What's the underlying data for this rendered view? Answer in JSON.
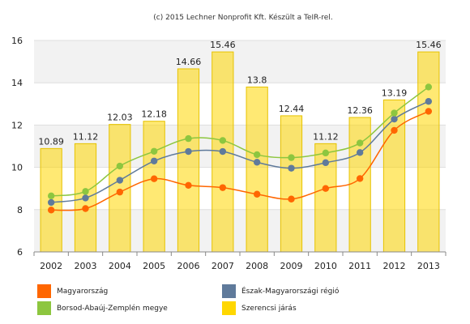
{
  "header": {
    "credit": "(c) 2015 Lechner Nonprofit Kft. Készült a TeIR-rel."
  },
  "chart_data": {
    "type": "bar",
    "categories": [
      "2002",
      "2003",
      "2004",
      "2005",
      "2006",
      "2007",
      "2008",
      "2009",
      "2010",
      "2011",
      "2012",
      "2013"
    ],
    "ylim": [
      6,
      16
    ],
    "yticks": [
      6,
      8,
      10,
      12,
      14,
      16
    ],
    "grid": true,
    "legend_position": "bottom",
    "title": "",
    "xlabel": "",
    "ylabel": "",
    "series": [
      {
        "name": "Szerencsi járás",
        "kind": "bar",
        "color": "#FFD700",
        "values": [
          10.89,
          11.12,
          12.03,
          12.18,
          14.66,
          15.46,
          13.8,
          12.44,
          11.12,
          12.36,
          13.19,
          15.46
        ],
        "labels": [
          "10.89",
          "11.12",
          "12.03",
          "12.18",
          "14.66",
          "15.46",
          "13.8",
          "12.44",
          "11.12",
          "12.36",
          "13.19",
          "15.46"
        ]
      },
      {
        "name": "Magyarország",
        "kind": "line",
        "color": "#FF6600",
        "values": [
          7.98,
          8.05,
          8.83,
          9.46,
          9.15,
          9.04,
          8.73,
          8.5,
          9.0,
          9.47,
          11.75,
          12.65
        ]
      },
      {
        "name": "Észak-Magyarországi régió",
        "kind": "line",
        "color": "#5F7A9B",
        "values": [
          8.34,
          8.55,
          9.39,
          10.3,
          10.75,
          10.75,
          10.24,
          9.96,
          10.22,
          10.7,
          12.28,
          13.12
        ]
      },
      {
        "name": "Borsod-Abaúj-Zemplén megye",
        "kind": "line",
        "color": "#8DC63F",
        "values": [
          8.65,
          8.86,
          10.06,
          10.76,
          11.36,
          11.27,
          10.6,
          10.46,
          10.68,
          11.15,
          12.57,
          13.8
        ]
      }
    ]
  },
  "legend": {
    "items": [
      {
        "label": "Magyarország",
        "color": "#FF6600"
      },
      {
        "label": "Észak-Magyarországi régió",
        "color": "#5F7A9B"
      },
      {
        "label": "Borsod-Abaúj-Zemplén megye",
        "color": "#8DC63F"
      },
      {
        "label": "Szerencsi járás",
        "color": "#FFD700"
      }
    ]
  }
}
